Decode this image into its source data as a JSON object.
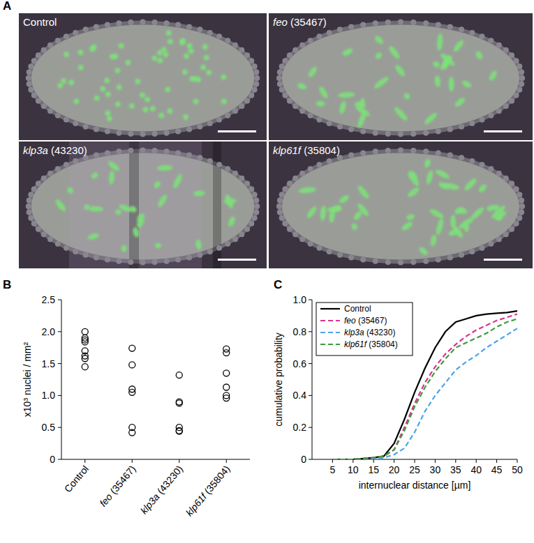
{
  "panel_labels": [
    "A",
    "B",
    "C"
  ],
  "images": {
    "panels": [
      {
        "label": "Control"
      },
      {
        "label": "feo (35467)"
      },
      {
        "label": "klp3a (43230)"
      },
      {
        "label": "klp61f (35804)"
      }
    ]
  },
  "chart_data": [
    {
      "type": "scatter",
      "y_label": "x10³ nuclei / mm²",
      "categories": [
        "Control",
        "feo (35467)",
        "klp3a (43230)",
        "klp61f (35804)"
      ],
      "values": [
        [
          2.0,
          1.9,
          1.87,
          1.84,
          1.7,
          1.62,
          1.58,
          1.45
        ],
        [
          1.74,
          1.48,
          1.1,
          1.05,
          0.5,
          0.42
        ],
        [
          1.32,
          0.9,
          0.88,
          0.5,
          0.45,
          0.44
        ],
        [
          1.73,
          1.67,
          1.35,
          1.13,
          1.0,
          0.96
        ]
      ],
      "ylim": [
        0,
        2.5
      ],
      "yticks": [
        0,
        0.5,
        {
          "value": 1,
          "label": "1.0"
        },
        1.5,
        {
          "value": 2,
          "label": "2.0"
        },
        2.5
      ],
      "color": "#000000",
      "marker": "circle"
    },
    {
      "type": "line",
      "x_label": "internuclear distance [µm]",
      "y_label": "cumulative probability",
      "x": [
        5,
        7.5,
        10,
        12.5,
        15,
        17.5,
        20,
        22.5,
        25,
        27.5,
        30,
        32.5,
        35,
        37.5,
        40,
        42.5,
        45,
        47.5,
        50
      ],
      "series": [
        {
          "name": "Control",
          "color": "#000000",
          "line_style": "solid",
          "values": [
            0,
            0,
            0,
            0.005,
            0.01,
            0.02,
            0.1,
            0.25,
            0.42,
            0.57,
            0.7,
            0.8,
            0.86,
            0.88,
            0.9,
            0.91,
            0.915,
            0.92,
            0.93
          ]
        },
        {
          "name": "feo (35467)",
          "color": "#d8338f",
          "line_style": "dashed",
          "values": [
            0,
            0,
            0,
            0.005,
            0.01,
            0.02,
            0.06,
            0.2,
            0.35,
            0.48,
            0.58,
            0.66,
            0.72,
            0.77,
            0.81,
            0.84,
            0.87,
            0.89,
            0.91
          ]
        },
        {
          "name": "klp3a (43230)",
          "color": "#4fa3e3",
          "line_style": "dashed",
          "values": [
            0,
            0,
            0,
            0,
            0.005,
            0.01,
            0.03,
            0.07,
            0.17,
            0.3,
            0.4,
            0.48,
            0.56,
            0.61,
            0.65,
            0.7,
            0.74,
            0.78,
            0.82
          ]
        },
        {
          "name": "klp61f (35804)",
          "color": "#3e9a3e",
          "line_style": "dashed",
          "values": [
            0,
            0,
            0,
            0.005,
            0.01,
            0.02,
            0.06,
            0.18,
            0.33,
            0.45,
            0.55,
            0.63,
            0.7,
            0.73,
            0.76,
            0.79,
            0.83,
            0.86,
            0.88
          ]
        }
      ],
      "xlim": [
        0,
        50
      ],
      "xticks": [
        5,
        10,
        15,
        20,
        25,
        30,
        35,
        40,
        45,
        50
      ],
      "ylim": [
        0,
        1
      ],
      "yticks": [
        0,
        0.2,
        0.4,
        0.6,
        0.8,
        {
          "value": 1,
          "label": "1.0"
        }
      ],
      "legend": "upper left"
    }
  ]
}
